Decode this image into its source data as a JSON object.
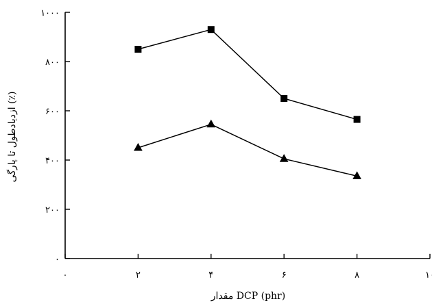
{
  "chart_data": {
    "type": "line",
    "xlabel": "مقدار DCP (phr)",
    "ylabel": "ازدیادطول تا پارگی (٪)",
    "xlim": [
      0,
      10
    ],
    "ylim": [
      0,
      1000
    ],
    "x_ticks": [
      0,
      2,
      4,
      6,
      8,
      10
    ],
    "y_ticks": [
      0,
      200,
      400,
      600,
      800,
      1000
    ],
    "x_tick_labels": [
      "۰",
      "۲",
      "۴",
      "۶",
      "۸",
      "۱۰"
    ],
    "y_tick_labels": [
      "۰",
      "۲۰۰",
      "۴۰۰",
      "۶۰۰",
      "۸۰۰",
      "۱۰۰۰"
    ],
    "grid": false,
    "legend": "none",
    "series": [
      {
        "marker": "square",
        "x": [
          2,
          4,
          6,
          8
        ],
        "values": [
          850,
          930,
          650,
          565
        ]
      },
      {
        "marker": "triangle",
        "x": [
          2,
          4,
          6,
          8
        ],
        "values": [
          450,
          545,
          405,
          335
        ]
      }
    ],
    "colors": {
      "line": "#000000",
      "axis": "#000000",
      "background": "#ffffff"
    }
  }
}
